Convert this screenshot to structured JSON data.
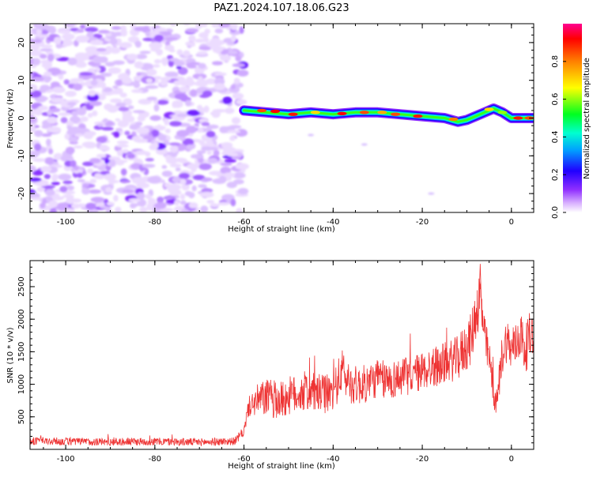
{
  "title": "PAZ1.2024.107.18.06.G23",
  "chart_data": [
    {
      "type": "heatmap",
      "xlabel": "Height of straight line (km)",
      "ylabel": "Frequency (Hz)",
      "xlim": [
        -108,
        5
      ],
      "ylim": [
        -25,
        25
      ],
      "x_ticks": [
        -100,
        -80,
        -60,
        -40,
        -20,
        0
      ],
      "y_ticks": [
        -20,
        -10,
        0,
        10,
        20
      ],
      "colorbar": {
        "label": "Normalized spectral amplitude",
        "range": [
          0,
          1
        ],
        "ticks": [
          0.0,
          0.2,
          0.4,
          0.6,
          0.8
        ],
        "colormap": [
          "#ffffff",
          "#c080ff",
          "#6000ff",
          "#0000ff",
          "#00e0ff",
          "#00ff40",
          "#ffff00",
          "#ff8000",
          "#ff0000",
          "#ff0080"
        ]
      },
      "noise_region": {
        "x_range": [
          -108,
          -60
        ],
        "f_range": [
          -25,
          25
        ],
        "amplitude_range": [
          0.02,
          0.15
        ]
      },
      "signal_track": {
        "x": [
          -60,
          -55,
          -50,
          -45,
          -40,
          -35,
          -30,
          -25,
          -20,
          -15,
          -12,
          -10,
          -8,
          -6,
          -4,
          -2,
          0,
          5
        ],
        "frequency": [
          2.0,
          1.5,
          1.0,
          1.5,
          1.0,
          1.5,
          1.5,
          1.0,
          0.5,
          0.0,
          -1.0,
          -0.5,
          0.5,
          1.5,
          2.5,
          1.5,
          0.0,
          0.0
        ],
        "peak_amplitude": 0.95
      }
    },
    {
      "type": "line",
      "xlabel": "Height of straight line (km)",
      "ylabel": "SNR (10 * v/v)",
      "xlim": [
        -108,
        5
      ],
      "ylim": [
        0,
        2900
      ],
      "x_ticks": [
        -100,
        -80,
        -60,
        -40,
        -20,
        0
      ],
      "y_ticks": [
        500,
        1000,
        1500,
        2000,
        2500
      ],
      "series": [
        {
          "color": "#ee3333",
          "x": [
            -108,
            -100,
            -90,
            -80,
            -70,
            -62,
            -60,
            -59,
            -57,
            -55,
            -52,
            -50,
            -48,
            -46,
            -44,
            -42,
            -40,
            -38,
            -36,
            -34,
            -32,
            -30,
            -28,
            -25,
            -22,
            -20,
            -18,
            -16,
            -14,
            -12,
            -10,
            -9,
            -8,
            -7,
            -6,
            -5,
            -4,
            -3.5,
            -3,
            -2,
            -1,
            0,
            1,
            2,
            3,
            4,
            5
          ],
          "values": [
            130,
            120,
            115,
            120,
            110,
            125,
            280,
            650,
            750,
            800,
            740,
            820,
            850,
            900,
            860,
            850,
            870,
            1200,
            1000,
            980,
            1020,
            1100,
            1050,
            1100,
            1150,
            1200,
            1250,
            1300,
            1350,
            1400,
            1600,
            1700,
            2100,
            2400,
            1700,
            1400,
            900,
            650,
            900,
            1500,
            1700,
            1500,
            1600,
            1800,
            1500,
            1700,
            1850
          ],
          "noise_amplitude": [
            60,
            60,
            60,
            60,
            60,
            60,
            80,
            150,
            250,
            300,
            300,
            300,
            300,
            320,
            300,
            300,
            300,
            350,
            300,
            300,
            300,
            300,
            300,
            300,
            300,
            300,
            320,
            320,
            320,
            350,
            400,
            400,
            450,
            400,
            350,
            300,
            250,
            150,
            250,
            350,
            350,
            300,
            350,
            400,
            350,
            400,
            350
          ]
        }
      ]
    }
  ]
}
